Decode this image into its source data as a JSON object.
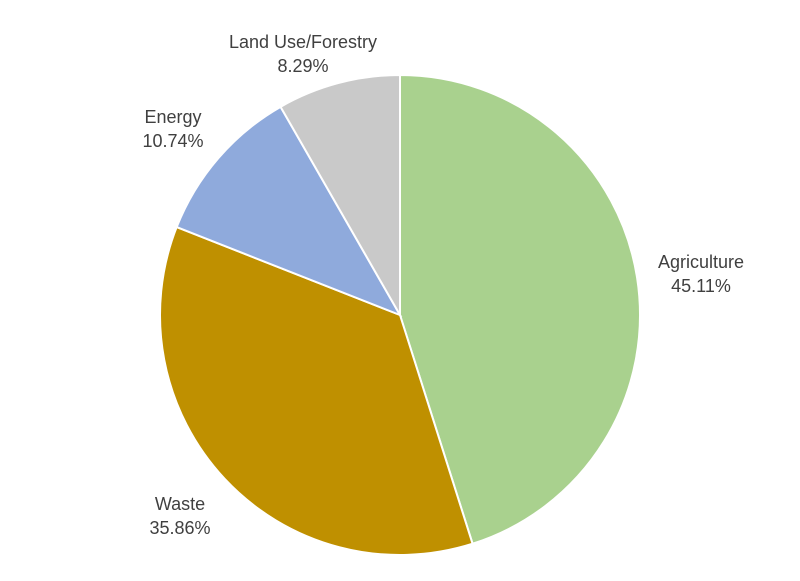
{
  "chart_data": {
    "type": "pie",
    "title": "",
    "start_angle_deg": 0,
    "direction": "clockwise",
    "slices": [
      {
        "label": "Agriculture",
        "value": 45.11,
        "display": "45.11%",
        "color": "#a9d18e"
      },
      {
        "label": "Waste",
        "value": 35.86,
        "display": "35.86%",
        "color": "#bf9000"
      },
      {
        "label": "Energy",
        "value": 10.74,
        "display": "10.74%",
        "color": "#8faadc"
      },
      {
        "label": "Land Use/Forestry",
        "value": 8.29,
        "display": "8.29%",
        "color": "#c9c9c9"
      }
    ],
    "legend": "none",
    "data_labels": "outside, category name + percentage"
  },
  "labels": {
    "agriculture": {
      "name": "Agriculture",
      "pct": "45.11%"
    },
    "waste": {
      "name": "Waste",
      "pct": "35.86%"
    },
    "energy": {
      "name": "Energy",
      "pct": "10.74%"
    },
    "landuse": {
      "name": "Land Use/Forestry",
      "pct": "8.29%"
    }
  }
}
